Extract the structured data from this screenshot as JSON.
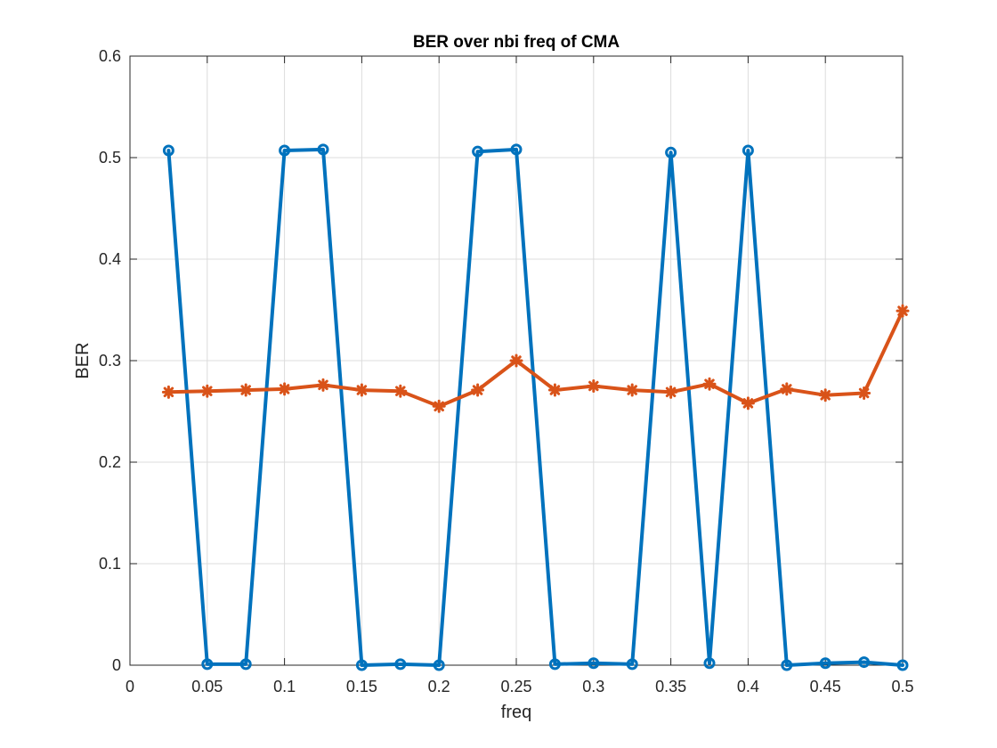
{
  "chart_data": {
    "type": "line",
    "title": "BER over nbi freq of CMA",
    "xlabel": "freq",
    "ylabel": "BER",
    "xlim": [
      0,
      0.5
    ],
    "ylim": [
      0,
      0.6
    ],
    "xticks": [
      0,
      0.05,
      0.1,
      0.15,
      0.2,
      0.25,
      0.3,
      0.35,
      0.4,
      0.45,
      0.5
    ],
    "xtick_labels": [
      "0",
      "0.05",
      "0.1",
      "0.15",
      "0.2",
      "0.25",
      "0.3",
      "0.35",
      "0.4",
      "0.45",
      "0.5"
    ],
    "yticks": [
      0,
      0.1,
      0.2,
      0.3,
      0.4,
      0.5,
      0.6
    ],
    "ytick_labels": [
      "0",
      "0.1",
      "0.2",
      "0.3",
      "0.4",
      "0.5",
      "0.6"
    ],
    "grid": true,
    "legend": "none",
    "x": [
      0.025,
      0.05,
      0.075,
      0.1,
      0.125,
      0.15,
      0.175,
      0.2,
      0.225,
      0.25,
      0.275,
      0.3,
      0.325,
      0.35,
      0.375,
      0.4,
      0.425,
      0.45,
      0.475,
      0.5
    ],
    "series": [
      {
        "color": "#0072BD",
        "marker": "circle",
        "values": [
          0.507,
          0.001,
          0.001,
          0.507,
          0.508,
          0.0,
          0.001,
          0.0,
          0.506,
          0.508,
          0.001,
          0.002,
          0.001,
          0.505,
          0.002,
          0.507,
          0.0,
          0.002,
          0.003,
          0.0
        ]
      },
      {
        "color": "#D95319",
        "marker": "asterisk",
        "values": [
          0.269,
          0.27,
          0.271,
          0.272,
          0.276,
          0.271,
          0.27,
          0.255,
          0.271,
          0.3,
          0.271,
          0.275,
          0.271,
          0.269,
          0.277,
          0.258,
          0.272,
          0.266,
          0.268,
          0.349
        ]
      }
    ]
  }
}
